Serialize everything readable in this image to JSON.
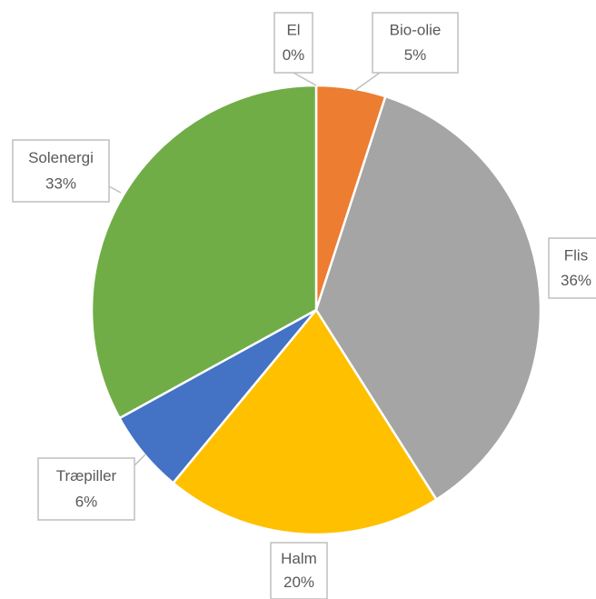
{
  "chart_data": {
    "type": "pie",
    "categories": [
      "El",
      "Bio-olie",
      "Flis",
      "Halm",
      "Træpiller",
      "Solenergi"
    ],
    "values": [
      0,
      5,
      36,
      20,
      6,
      33
    ],
    "value_labels": [
      "0%",
      "5%",
      "36%",
      "20%",
      "6%",
      "33%"
    ],
    "colors": [
      "#5B9BD5",
      "#ED7D31",
      "#A5A5A5",
      "#FFC000",
      "#4472C4",
      "#70AD47"
    ]
  }
}
